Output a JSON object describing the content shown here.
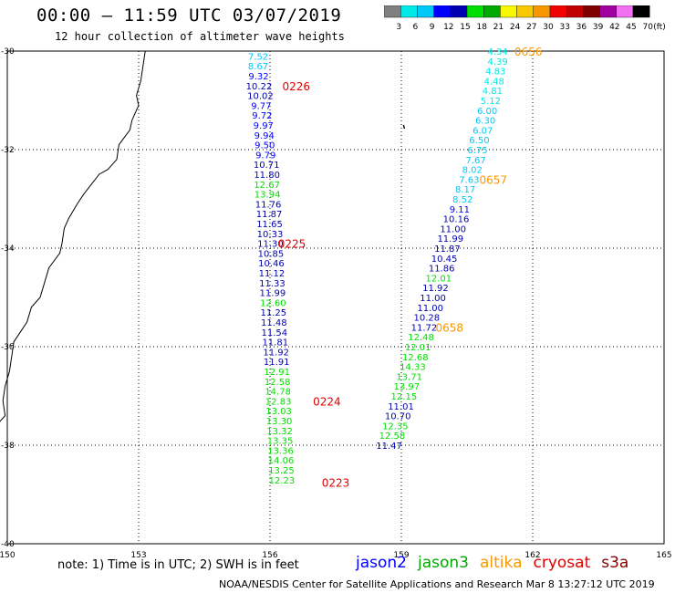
{
  "header": {
    "title": "00:00 – 11:59 UTC 03/07/2019",
    "subtitle": "12 hour collection of altimeter wave heights"
  },
  "color_scale": {
    "values": [
      "3",
      "6",
      "9",
      "12",
      "15",
      "18",
      "21",
      "24",
      "27",
      "30",
      "33",
      "36",
      "39",
      "42",
      "45",
      "70"
    ],
    "unit": "(ft)",
    "colors": [
      "#808080",
      "#00e8e8",
      "#00c8f8",
      "#0000ff",
      "#0000b0",
      "#00e000",
      "#00a800",
      "#f8f800",
      "#f8c800",
      "#f89800",
      "#f00000",
      "#c00000",
      "#800000",
      "#a000a0",
      "#f070f0",
      "#000000"
    ]
  },
  "axes": {
    "lon_ticks": [
      150,
      153,
      156,
      159,
      162,
      165
    ],
    "lon_labels": [
      "150",
      "153",
      "156",
      "159",
      "162",
      "165"
    ],
    "lat_ticks": [
      -30,
      -32,
      -34,
      -36,
      -38,
      -40
    ],
    "lat_labels": [
      "-30",
      "-32",
      "-34",
      "-3б",
      "-38",
      "-40"
    ]
  },
  "tracks": [
    {
      "name": "track-left",
      "points": [
        {
          "lon": 155.73,
          "lat": -30.1,
          "v": "7.52",
          "c": "#00c8f8"
        },
        {
          "lon": 155.73,
          "lat": -30.3,
          "v": "8.67",
          "c": "#00c8f8"
        },
        {
          "lon": 155.74,
          "lat": -30.5,
          "v": "9.32",
          "c": "#0000ff"
        },
        {
          "lon": 155.75,
          "lat": -30.7,
          "v": "10.22",
          "c": "#0000b0"
        },
        {
          "lon": 155.78,
          "lat": -30.9,
          "v": "10.02",
          "c": "#0000b0"
        },
        {
          "lon": 155.8,
          "lat": -31.1,
          "v": "9.77",
          "c": "#0000ff"
        },
        {
          "lon": 155.82,
          "lat": -31.3,
          "v": "9.72",
          "c": "#0000ff"
        },
        {
          "lon": 155.85,
          "lat": -31.5,
          "v": "9.97",
          "c": "#0000ff"
        },
        {
          "lon": 155.87,
          "lat": -31.7,
          "v": "9.94",
          "c": "#0000ff"
        },
        {
          "lon": 155.88,
          "lat": -31.9,
          "v": "9.50",
          "c": "#0000ff"
        },
        {
          "lon": 155.9,
          "lat": -32.1,
          "v": "9.79",
          "c": "#0000ff"
        },
        {
          "lon": 155.92,
          "lat": -32.3,
          "v": "10.71",
          "c": "#0000b0"
        },
        {
          "lon": 155.93,
          "lat": -32.5,
          "v": "11.80",
          "c": "#0000b0"
        },
        {
          "lon": 155.93,
          "lat": -32.7,
          "v": "12.67",
          "c": "#00e000"
        },
        {
          "lon": 155.94,
          "lat": -32.9,
          "v": "13.94",
          "c": "#00e000"
        },
        {
          "lon": 155.96,
          "lat": -33.1,
          "v": "11.76",
          "c": "#0000b0"
        },
        {
          "lon": 155.98,
          "lat": -33.3,
          "v": "11.87",
          "c": "#0000b0"
        },
        {
          "lon": 155.99,
          "lat": -33.5,
          "v": "11.65",
          "c": "#0000b0"
        },
        {
          "lon": 156.0,
          "lat": -33.7,
          "v": "10.33",
          "c": "#0000b0"
        },
        {
          "lon": 156.01,
          "lat": -33.9,
          "v": "11.30",
          "c": "#0000b0"
        },
        {
          "lon": 156.02,
          "lat": -34.1,
          "v": "10.85",
          "c": "#0000b0"
        },
        {
          "lon": 156.03,
          "lat": -34.3,
          "v": "10.46",
          "c": "#0000b0"
        },
        {
          "lon": 156.04,
          "lat": -34.5,
          "v": "11.12",
          "c": "#0000b0"
        },
        {
          "lon": 156.05,
          "lat": -34.7,
          "v": "11.33",
          "c": "#0000b0"
        },
        {
          "lon": 156.06,
          "lat": -34.9,
          "v": "11.99",
          "c": "#0000b0"
        },
        {
          "lon": 156.07,
          "lat": -35.1,
          "v": "12.60",
          "c": "#00e000"
        },
        {
          "lon": 156.08,
          "lat": -35.3,
          "v": "11.25",
          "c": "#0000b0"
        },
        {
          "lon": 156.09,
          "lat": -35.5,
          "v": "11.48",
          "c": "#0000b0"
        },
        {
          "lon": 156.1,
          "lat": -35.7,
          "v": "11.54",
          "c": "#0000b0"
        },
        {
          "lon": 156.12,
          "lat": -35.9,
          "v": "11.81",
          "c": "#0000b0"
        },
        {
          "lon": 156.14,
          "lat": -36.1,
          "v": "11.92",
          "c": "#0000b0"
        },
        {
          "lon": 156.15,
          "lat": -36.3,
          "v": "11.91",
          "c": "#0000b0"
        },
        {
          "lon": 156.16,
          "lat": -36.5,
          "v": "12.91",
          "c": "#00e000"
        },
        {
          "lon": 156.17,
          "lat": -36.7,
          "v": "12.58",
          "c": "#00e000"
        },
        {
          "lon": 156.18,
          "lat": -36.9,
          "v": "14.78",
          "c": "#00e000"
        },
        {
          "lon": 156.19,
          "lat": -37.1,
          "v": "12.83",
          "c": "#00e000"
        },
        {
          "lon": 156.2,
          "lat": -37.3,
          "v": "13.03",
          "c": "#00e000"
        },
        {
          "lon": 156.21,
          "lat": -37.5,
          "v": "13.30",
          "c": "#00e000"
        },
        {
          "lon": 156.22,
          "lat": -37.7,
          "v": "13.32",
          "c": "#00e000"
        },
        {
          "lon": 156.23,
          "lat": -37.9,
          "v": "13.35",
          "c": "#00e000"
        },
        {
          "lon": 156.24,
          "lat": -38.1,
          "v": "13.36",
          "c": "#00e000"
        },
        {
          "lon": 156.25,
          "lat": -38.3,
          "v": "14.06",
          "c": "#00e000"
        },
        {
          "lon": 156.26,
          "lat": -38.5,
          "v": "13.25",
          "c": "#00e000"
        },
        {
          "lon": 156.27,
          "lat": -38.7,
          "v": "12.23",
          "c": "#00e000"
        }
      ],
      "time_labels": [
        {
          "lon": 156.6,
          "lat": -30.7,
          "t": "0226",
          "c": "#e00000"
        },
        {
          "lon": 156.5,
          "lat": -33.9,
          "t": "0225",
          "c": "#e00000"
        },
        {
          "lon": 157.3,
          "lat": -37.1,
          "t": "0224",
          "c": "#e00000"
        },
        {
          "lon": 157.5,
          "lat": -38.75,
          "t": "0223",
          "c": "#e00000"
        }
      ]
    },
    {
      "name": "track-right",
      "points": [
        {
          "lon": 161.2,
          "lat": -30.0,
          "v": "4.34",
          "c": "#00e8e8"
        },
        {
          "lon": 161.2,
          "lat": -30.2,
          "v": "4.39",
          "c": "#00e8e8"
        },
        {
          "lon": 161.15,
          "lat": -30.4,
          "v": "4.83",
          "c": "#00e8e8"
        },
        {
          "lon": 161.12,
          "lat": -30.6,
          "v": "4.48",
          "c": "#00e8e8"
        },
        {
          "lon": 161.08,
          "lat": -30.8,
          "v": "4.81",
          "c": "#00e8e8"
        },
        {
          "lon": 161.04,
          "lat": -31.0,
          "v": "5.12",
          "c": "#00e8e8"
        },
        {
          "lon": 160.96,
          "lat": -31.2,
          "v": "6.00",
          "c": "#00c8f8"
        },
        {
          "lon": 160.92,
          "lat": -31.4,
          "v": "6.30",
          "c": "#00c8f8"
        },
        {
          "lon": 160.86,
          "lat": -31.6,
          "v": "6.07",
          "c": "#00c8f8"
        },
        {
          "lon": 160.78,
          "lat": -31.8,
          "v": "6.50",
          "c": "#00c8f8"
        },
        {
          "lon": 160.74,
          "lat": -32.0,
          "v": "6.75",
          "c": "#00c8f8"
        },
        {
          "lon": 160.7,
          "lat": -32.2,
          "v": "7.67",
          "c": "#00c8f8"
        },
        {
          "lon": 160.62,
          "lat": -32.4,
          "v": "8.02",
          "c": "#00c8f8"
        },
        {
          "lon": 160.55,
          "lat": -32.6,
          "v": "7.63",
          "c": "#00c8f8"
        },
        {
          "lon": 160.46,
          "lat": -32.8,
          "v": "8.17",
          "c": "#00c8f8"
        },
        {
          "lon": 160.4,
          "lat": -33.0,
          "v": "8.52",
          "c": "#00c8f8"
        },
        {
          "lon": 160.33,
          "lat": -33.2,
          "v": "9.11",
          "c": "#0000ff"
        },
        {
          "lon": 160.25,
          "lat": -33.4,
          "v": "10.16",
          "c": "#0000b0"
        },
        {
          "lon": 160.18,
          "lat": -33.6,
          "v": "11.00",
          "c": "#0000b0"
        },
        {
          "lon": 160.12,
          "lat": -33.8,
          "v": "11.99",
          "c": "#0000b0"
        },
        {
          "lon": 160.05,
          "lat": -34.0,
          "v": "11.87",
          "c": "#0000b0"
        },
        {
          "lon": 159.98,
          "lat": -34.2,
          "v": "10.45",
          "c": "#0000b0"
        },
        {
          "lon": 159.92,
          "lat": -34.4,
          "v": "11.86",
          "c": "#0000b0"
        },
        {
          "lon": 159.85,
          "lat": -34.6,
          "v": "12.01",
          "c": "#00e000"
        },
        {
          "lon": 159.78,
          "lat": -34.8,
          "v": "11.92",
          "c": "#0000b0"
        },
        {
          "lon": 159.72,
          "lat": -35.0,
          "v": "11.00",
          "c": "#0000b0"
        },
        {
          "lon": 159.66,
          "lat": -35.2,
          "v": "11.00",
          "c": "#0000b0"
        },
        {
          "lon": 159.58,
          "lat": -35.4,
          "v": "10.28",
          "c": "#0000b0"
        },
        {
          "lon": 159.52,
          "lat": -35.6,
          "v": "11.72",
          "c": "#0000b0"
        },
        {
          "lon": 159.45,
          "lat": -35.8,
          "v": "12.48",
          "c": "#00e000"
        },
        {
          "lon": 159.38,
          "lat": -36.0,
          "v": "12.01",
          "c": "#00e000"
        },
        {
          "lon": 159.32,
          "lat": -36.2,
          "v": "12.68",
          "c": "#00e000"
        },
        {
          "lon": 159.26,
          "lat": -36.4,
          "v": "14.33",
          "c": "#00e000"
        },
        {
          "lon": 159.18,
          "lat": -36.6,
          "v": "13.71",
          "c": "#00e000"
        },
        {
          "lon": 159.12,
          "lat": -36.8,
          "v": "13.97",
          "c": "#00e000"
        },
        {
          "lon": 159.06,
          "lat": -37.0,
          "v": "12.15",
          "c": "#00e000"
        },
        {
          "lon": 158.99,
          "lat": -37.2,
          "v": "11.01",
          "c": "#0000b0"
        },
        {
          "lon": 158.92,
          "lat": -37.4,
          "v": "10.70",
          "c": "#0000b0"
        },
        {
          "lon": 158.86,
          "lat": -37.6,
          "v": "12.35",
          "c": "#00e000"
        },
        {
          "lon": 158.79,
          "lat": -37.8,
          "v": "12.58",
          "c": "#00e000"
        },
        {
          "lon": 158.72,
          "lat": -38.0,
          "v": "11.47",
          "c": "#0000b0"
        }
      ],
      "time_labels": [
        {
          "lon": 161.9,
          "lat": -30.0,
          "t": "0656",
          "c": "#f89800"
        },
        {
          "lon": 161.1,
          "lat": -32.6,
          "t": "0657",
          "c": "#f89800"
        },
        {
          "lon": 160.1,
          "lat": -35.6,
          "t": "0658",
          "c": "#f89800"
        }
      ]
    }
  ],
  "footer": {
    "note": "note: 1) Time is in UTC; 2) SWH is in feet",
    "legend": [
      {
        "label": "jason2",
        "color": "#0000ff"
      },
      {
        "label": "jason3",
        "color": "#00a800"
      },
      {
        "label": "altika",
        "color": "#f89800"
      },
      {
        "label": "cryosat",
        "color": "#e00000"
      },
      {
        "label": "s3a",
        "color": "#800000"
      }
    ],
    "credit": "NOAA/NESDIS Center for Satellite Applications and Research    Mar  8 13:27:12 UTC 2019"
  }
}
